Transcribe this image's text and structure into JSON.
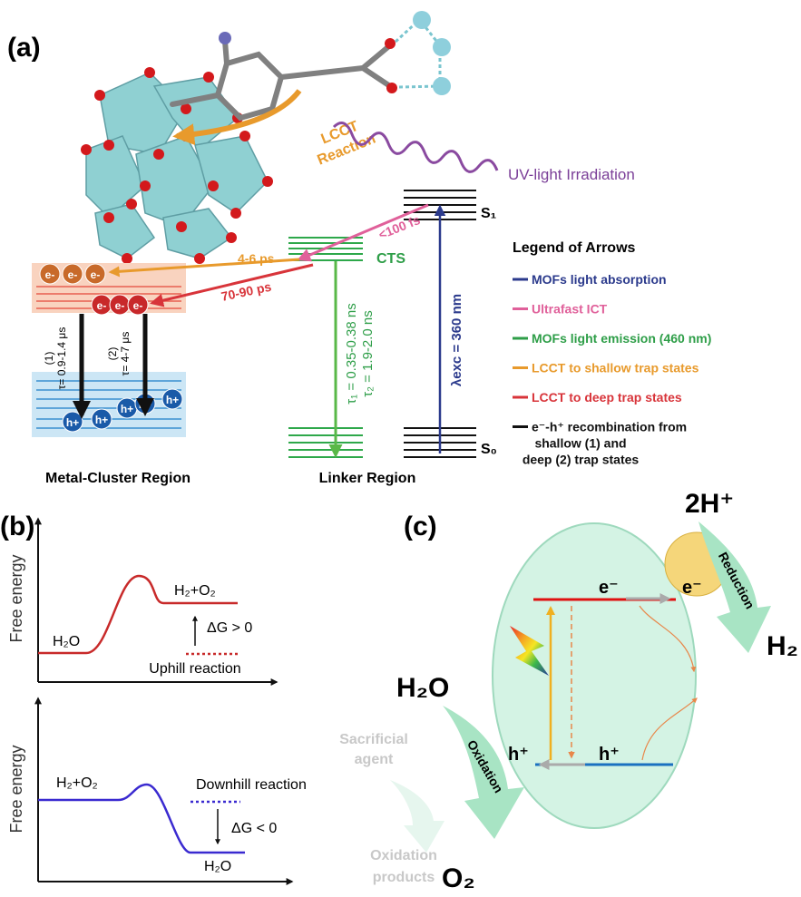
{
  "panel_a": {
    "label": "(a)",
    "reaction_label": [
      "LCCT",
      "Reaction"
    ],
    "irradiation": "UV-light Irradiation",
    "s1": "S₁",
    "s0": "S₀",
    "ict_time": "<100 fs",
    "cts": "CTS",
    "shallow_time": "4-6 ps",
    "deep_time": "70-90 ps",
    "electron": "e-",
    "hole": "h+",
    "shallow_lifetime": [
      "(1)",
      "τ= 0.9-1.4 μs"
    ],
    "deep_lifetime": [
      "(2)",
      "τ= 4-7 μs"
    ],
    "emission_lifetimes": [
      "τ₁ = 0.35-0.38 ns",
      "τ₂ = 1.9-2.0 ns"
    ],
    "excitation": "λexc = 360 nm",
    "metal_region": "Metal-Cluster Region",
    "linker_region": "Linker Region",
    "legend": {
      "title": "Legend of Arrows",
      "items": [
        {
          "lines": [
            "MOFs light absorption"
          ],
          "color": "#2b3a8c"
        },
        {
          "lines": [
            "Ultrafast ICT"
          ],
          "color": "#e0609a"
        },
        {
          "lines": [
            "MOFs light emission (460 nm)"
          ],
          "color": "#2e9e48"
        },
        {
          "lines": [
            "LCCT to shallow trap states"
          ],
          "color": "#e89a2c"
        },
        {
          "lines": [
            "LCCT to deep trap states"
          ],
          "color": "#d8343a"
        },
        {
          "lines": [
            "e⁻-h⁺ recombination from",
            "shallow (1) and",
            "deep (2) trap states"
          ],
          "color": "#111111"
        }
      ]
    }
  },
  "panel_b": {
    "label": "(b)",
    "uphill": {
      "axis": "Free energy",
      "reactant": "H₂O",
      "product": "H₂+O₂",
      "delta": "ΔG > 0",
      "caption": "Uphill reaction"
    },
    "downhill": {
      "axis": "Free energy",
      "reactant": "H₂+O₂",
      "caption": "Downhill reaction",
      "delta": "ΔG < 0",
      "product": "H₂O"
    }
  },
  "panel_c": {
    "label": "(c)",
    "proton": "2H⁺",
    "reduction": "Reduction",
    "hydrogen": "H₂",
    "electron": "e⁻",
    "hole": "h⁺",
    "water": "H₂O",
    "sacrificial": [
      "Sacrificial",
      "agent"
    ],
    "oxidation": "Oxidation",
    "oxygen": "O₂",
    "products": [
      "Oxidation",
      "products"
    ]
  }
}
